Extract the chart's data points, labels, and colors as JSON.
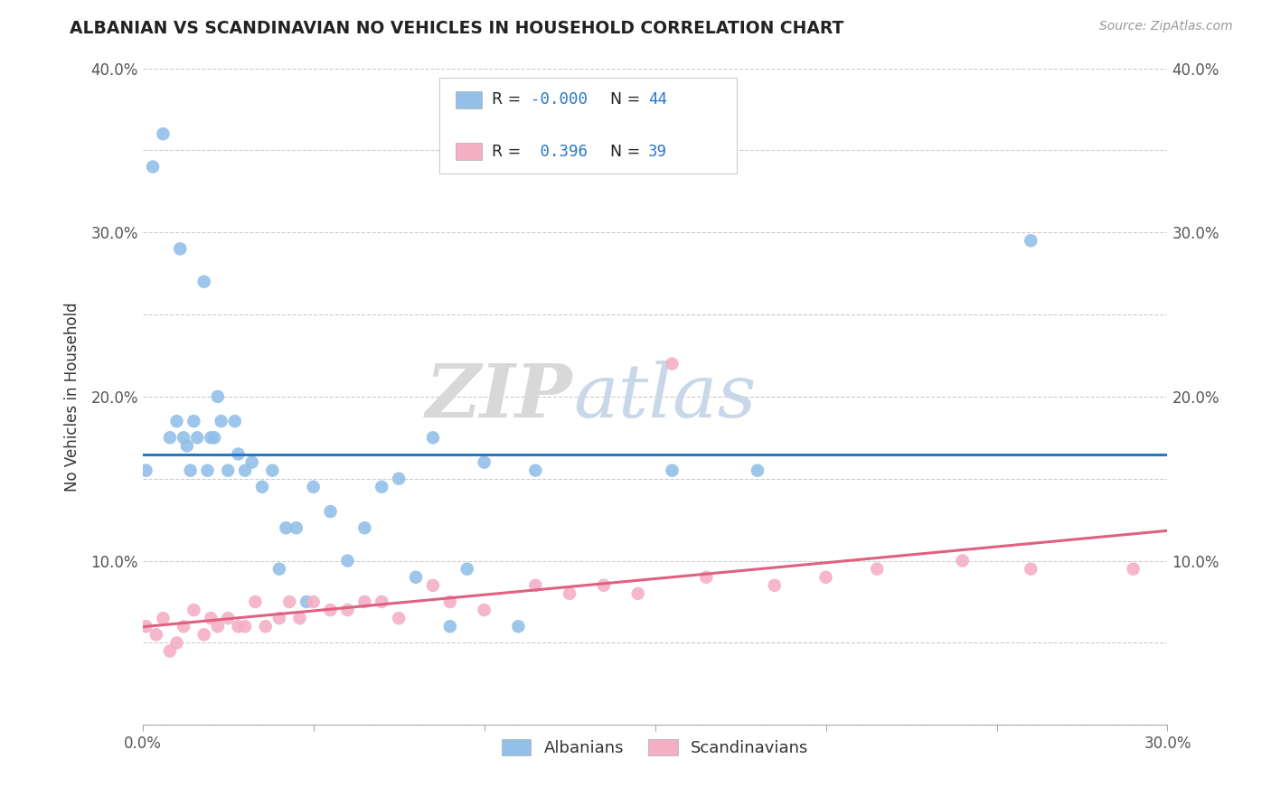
{
  "title": "ALBANIAN VS SCANDINAVIAN NO VEHICLES IN HOUSEHOLD CORRELATION CHART",
  "source": "Source: ZipAtlas.com",
  "ylabel": "No Vehicles in Household",
  "xlim": [
    0.0,
    0.3
  ],
  "ylim": [
    0.0,
    0.4
  ],
  "xticks": [
    0.0,
    0.05,
    0.1,
    0.15,
    0.2,
    0.25,
    0.3
  ],
  "xticklabels": [
    "0.0%",
    "",
    "",
    "",
    "",
    "",
    "30.0%"
  ],
  "yticks": [
    0.0,
    0.05,
    0.1,
    0.15,
    0.2,
    0.25,
    0.3,
    0.35,
    0.4
  ],
  "yticklabels_left": [
    "",
    "",
    "10.0%",
    "",
    "20.0%",
    "",
    "30.0%",
    "",
    "40.0%"
  ],
  "yticklabels_right": [
    "",
    "",
    "10.0%",
    "",
    "20.0%",
    "",
    "30.0%",
    "",
    "40.0%"
  ],
  "albanian_color": "#92c0e8",
  "scandinavian_color": "#f4afc4",
  "albanian_line_color": "#2878c8",
  "scandinavian_line_color": "#e06080",
  "legend_R_albanian": "-0.000",
  "legend_N_albanian": "44",
  "legend_R_scandinavian": "0.396",
  "legend_N_scandinavian": "39",
  "albanian_x": [
    0.001,
    0.003,
    0.006,
    0.008,
    0.01,
    0.011,
    0.012,
    0.013,
    0.014,
    0.015,
    0.016,
    0.018,
    0.019,
    0.02,
    0.021,
    0.022,
    0.023,
    0.025,
    0.027,
    0.028,
    0.03,
    0.032,
    0.035,
    0.038,
    0.04,
    0.042,
    0.045,
    0.048,
    0.05,
    0.055,
    0.06,
    0.065,
    0.07,
    0.075,
    0.08,
    0.085,
    0.09,
    0.095,
    0.1,
    0.11,
    0.115,
    0.155,
    0.18,
    0.26
  ],
  "albanian_y": [
    0.155,
    0.34,
    0.36,
    0.175,
    0.185,
    0.29,
    0.175,
    0.17,
    0.155,
    0.185,
    0.175,
    0.27,
    0.155,
    0.175,
    0.175,
    0.2,
    0.185,
    0.155,
    0.185,
    0.165,
    0.155,
    0.16,
    0.145,
    0.155,
    0.095,
    0.12,
    0.12,
    0.075,
    0.145,
    0.13,
    0.1,
    0.12,
    0.145,
    0.15,
    0.09,
    0.175,
    0.06,
    0.095,
    0.16,
    0.06,
    0.155,
    0.155,
    0.155,
    0.295
  ],
  "scandinavian_x": [
    0.001,
    0.004,
    0.006,
    0.008,
    0.01,
    0.012,
    0.015,
    0.018,
    0.02,
    0.022,
    0.025,
    0.028,
    0.03,
    0.033,
    0.036,
    0.04,
    0.043,
    0.046,
    0.05,
    0.055,
    0.06,
    0.065,
    0.07,
    0.075,
    0.085,
    0.09,
    0.1,
    0.115,
    0.125,
    0.135,
    0.145,
    0.155,
    0.165,
    0.185,
    0.2,
    0.215,
    0.24,
    0.26,
    0.29
  ],
  "scandinavian_y": [
    0.06,
    0.055,
    0.065,
    0.045,
    0.05,
    0.06,
    0.07,
    0.055,
    0.065,
    0.06,
    0.065,
    0.06,
    0.06,
    0.075,
    0.06,
    0.065,
    0.075,
    0.065,
    0.075,
    0.07,
    0.07,
    0.075,
    0.075,
    0.065,
    0.085,
    0.075,
    0.07,
    0.085,
    0.08,
    0.085,
    0.08,
    0.22,
    0.09,
    0.085,
    0.09,
    0.095,
    0.1,
    0.095,
    0.095
  ],
  "watermark_zip": "ZIP",
  "watermark_atlas": "atlas",
  "background_color": "#ffffff",
  "grid_color": "#cccccc",
  "value_color": "#2878c8",
  "label_color": "#333333",
  "tick_color": "#555555"
}
